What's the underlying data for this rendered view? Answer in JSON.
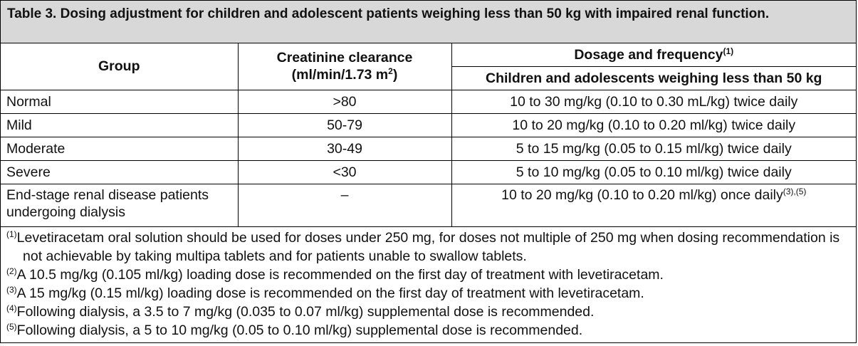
{
  "title": "Table 3. Dosing adjustment for children and adolescent patients weighing less than 50 kg with impaired renal function.",
  "header": {
    "group": "Group",
    "clearance": "Creatinine clearance",
    "clearance_unit": "(ml/min/1.73 m",
    "clearance_unit_sup": "2",
    "clearance_unit_end": ")",
    "dosage": "Dosage and frequency",
    "dosage_sup": "(1)",
    "subgroup": "Children and adolescents weighing less than 50 kg"
  },
  "rows": [
    {
      "group": "Normal",
      "clearance": ">80",
      "dosage": "10 to 30 mg/kg (0.10 to 0.30 mL/kg) twice daily"
    },
    {
      "group": "Mild",
      "clearance": "50-79",
      "dosage": "10 to 20 mg/kg (0.10 to 0.20 ml/kg) twice daily"
    },
    {
      "group": "Moderate",
      "clearance": "30-49",
      "dosage": "5 to 15 mg/kg (0.05 to 0.15 ml/kg) twice daily"
    },
    {
      "group": "Severe",
      "clearance": "<30",
      "dosage": "5 to 10 mg/kg (0.05 to 0.10 ml/kg) twice daily"
    },
    {
      "group": "End-stage renal disease patients undergoing dialysis",
      "clearance": "–",
      "dosage": "10 to 20 mg/kg (0.10 to 0.20 ml/kg) once daily",
      "dosage_sup": "(3),(5)"
    }
  ],
  "footnotes": [
    {
      "mark": "(1)",
      "text": "Levetiracetam oral solution should be used for doses under 250 mg, for doses not multiple of 250 mg when dosing recommendation is not achievable by taking multipa tablets and for patients unable to swallow tablets."
    },
    {
      "mark": "(2)",
      "text": "A 10.5 mg/kg (0.105 ml/kg) loading dose is recommended on the first day of treatment with levetiracetam."
    },
    {
      "mark": "(3)",
      "text": "A 15 mg/kg (0.15 ml/kg) loading dose is recommended on the first day of treatment with levetiracetam."
    },
    {
      "mark": "(4)",
      "text": "Following dialysis, a 3.5 to 7 mg/kg (0.035 to 0.07 ml/kg) supplemental dose is recommended."
    },
    {
      "mark": "(5)",
      "text": "Following dialysis, a 5 to 10 mg/kg (0.05 to 0.10 ml/kg) supplemental dose is recommended."
    }
  ]
}
